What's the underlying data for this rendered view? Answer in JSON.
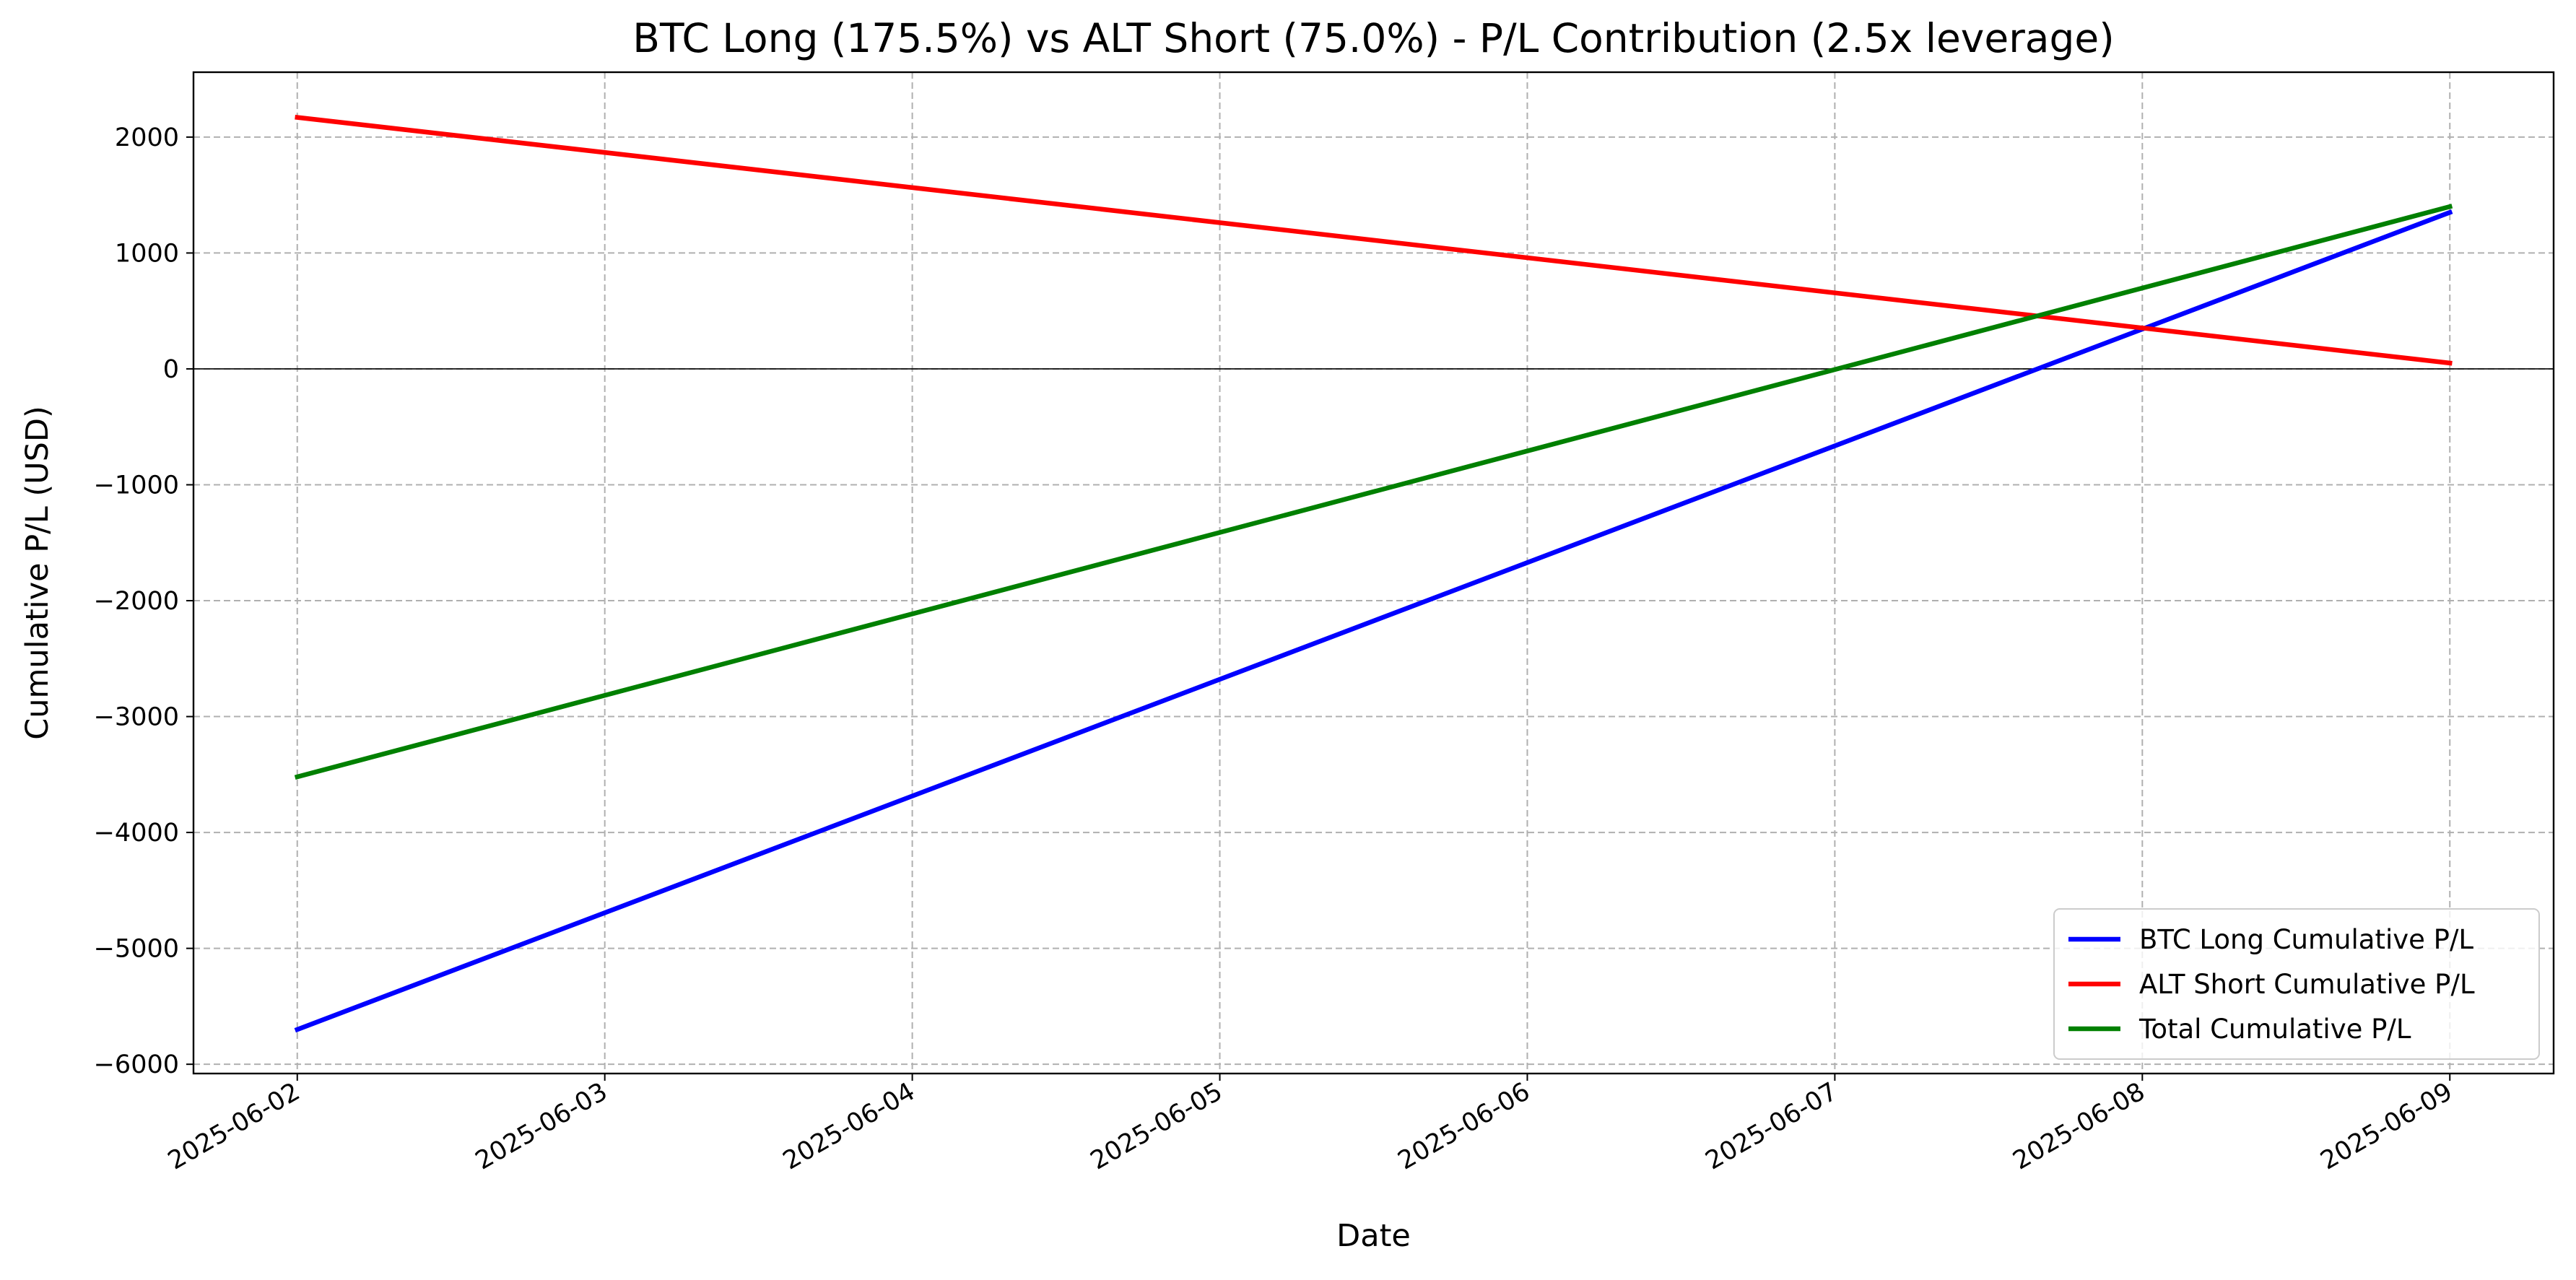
{
  "chart_data": {
    "type": "line",
    "title": "BTC Long (175.5%) vs ALT Short (75.0%) - P/L Contribution (2.5x leverage)",
    "xlabel": "Date",
    "ylabel": "Cumulative P/L (USD)",
    "x": [
      "2025-06-02",
      "2025-06-09"
    ],
    "x_ticks": [
      "2025-06-02",
      "2025-06-03",
      "2025-06-04",
      "2025-06-05",
      "2025-06-06",
      "2025-06-07",
      "2025-06-08",
      "2025-06-09"
    ],
    "xlim": [
      "2025-06-01 15:54",
      "2025-06-09 08:06"
    ],
    "y_ticks": [
      -6000,
      -5000,
      -4000,
      -3000,
      -2000,
      -1000,
      0,
      1000,
      2000
    ],
    "ylim": [
      -6080,
      2560
    ],
    "grid": true,
    "zero_line": true,
    "legend_position": "lower right",
    "series": [
      {
        "name": "BTC Long Cumulative P/L",
        "color": "#0000ff",
        "values": [
          -5700,
          1350
        ]
      },
      {
        "name": "ALT Short Cumulative P/L",
        "color": "#ff0000",
        "values": [
          2170,
          50
        ]
      },
      {
        "name": "Total Cumulative P/L",
        "color": "#008000",
        "values": [
          -3520,
          1400
        ]
      }
    ]
  }
}
